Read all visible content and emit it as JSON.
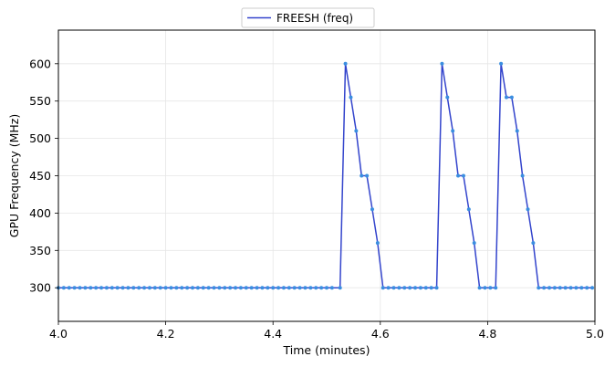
{
  "chart_data": {
    "type": "line",
    "xlabel": "Time (minutes)",
    "ylabel": "GPU Frequency (MHz)",
    "xlim": [
      4.0,
      5.0
    ],
    "ylim": [
      255,
      645
    ],
    "xticks": [
      "4.0",
      "4.2",
      "4.4",
      "4.6",
      "4.8",
      "5.0"
    ],
    "xtick_values": [
      4.0,
      4.2,
      4.4,
      4.6,
      4.8,
      5.0
    ],
    "yticks": [
      "300",
      "350",
      "400",
      "450",
      "500",
      "550",
      "600"
    ],
    "ytick_values": [
      300,
      350,
      400,
      450,
      500,
      550,
      600
    ],
    "grid": true,
    "legend_position": "top-center",
    "series": [
      {
        "name": "FREESH (freq)",
        "line_color": "#3344cc",
        "marker_color": "#3a8ee0",
        "points": [
          [
            4.0,
            300
          ],
          [
            4.01,
            300
          ],
          [
            4.02,
            300
          ],
          [
            4.03,
            300
          ],
          [
            4.04,
            300
          ],
          [
            4.05,
            300
          ],
          [
            4.06,
            300
          ],
          [
            4.07,
            300
          ],
          [
            4.08,
            300
          ],
          [
            4.09,
            300
          ],
          [
            4.1,
            300
          ],
          [
            4.11,
            300
          ],
          [
            4.12,
            300
          ],
          [
            4.13,
            300
          ],
          [
            4.14,
            300
          ],
          [
            4.15,
            300
          ],
          [
            4.16,
            300
          ],
          [
            4.17,
            300
          ],
          [
            4.18,
            300
          ],
          [
            4.19,
            300
          ],
          [
            4.2,
            300
          ],
          [
            4.21,
            300
          ],
          [
            4.22,
            300
          ],
          [
            4.23,
            300
          ],
          [
            4.24,
            300
          ],
          [
            4.25,
            300
          ],
          [
            4.26,
            300
          ],
          [
            4.27,
            300
          ],
          [
            4.28,
            300
          ],
          [
            4.29,
            300
          ],
          [
            4.3,
            300
          ],
          [
            4.31,
            300
          ],
          [
            4.32,
            300
          ],
          [
            4.33,
            300
          ],
          [
            4.34,
            300
          ],
          [
            4.35,
            300
          ],
          [
            4.36,
            300
          ],
          [
            4.37,
            300
          ],
          [
            4.38,
            300
          ],
          [
            4.39,
            300
          ],
          [
            4.4,
            300
          ],
          [
            4.41,
            300
          ],
          [
            4.42,
            300
          ],
          [
            4.43,
            300
          ],
          [
            4.44,
            300
          ],
          [
            4.45,
            300
          ],
          [
            4.46,
            300
          ],
          [
            4.47,
            300
          ],
          [
            4.48,
            300
          ],
          [
            4.49,
            300
          ],
          [
            4.5,
            300
          ],
          [
            4.51,
            300
          ],
          [
            4.525,
            300
          ],
          [
            4.535,
            600
          ],
          [
            4.545,
            555
          ],
          [
            4.555,
            510
          ],
          [
            4.565,
            450
          ],
          [
            4.575,
            450
          ],
          [
            4.585,
            405
          ],
          [
            4.595,
            360
          ],
          [
            4.605,
            300
          ],
          [
            4.615,
            300
          ],
          [
            4.625,
            300
          ],
          [
            4.635,
            300
          ],
          [
            4.645,
            300
          ],
          [
            4.655,
            300
          ],
          [
            4.665,
            300
          ],
          [
            4.675,
            300
          ],
          [
            4.685,
            300
          ],
          [
            4.695,
            300
          ],
          [
            4.705,
            300
          ],
          [
            4.715,
            600
          ],
          [
            4.725,
            555
          ],
          [
            4.735,
            510
          ],
          [
            4.745,
            450
          ],
          [
            4.755,
            450
          ],
          [
            4.765,
            405
          ],
          [
            4.775,
            360
          ],
          [
            4.785,
            300
          ],
          [
            4.795,
            300
          ],
          [
            4.805,
            300
          ],
          [
            4.815,
            300
          ],
          [
            4.825,
            600
          ],
          [
            4.835,
            555
          ],
          [
            4.845,
            555
          ],
          [
            4.855,
            510
          ],
          [
            4.865,
            450
          ],
          [
            4.875,
            405
          ],
          [
            4.885,
            360
          ],
          [
            4.895,
            300
          ],
          [
            4.905,
            300
          ],
          [
            4.915,
            300
          ],
          [
            4.925,
            300
          ],
          [
            4.935,
            300
          ],
          [
            4.945,
            300
          ],
          [
            4.955,
            300
          ],
          [
            4.965,
            300
          ],
          [
            4.975,
            300
          ],
          [
            4.985,
            300
          ],
          [
            4.995,
            300
          ]
        ]
      }
    ]
  }
}
